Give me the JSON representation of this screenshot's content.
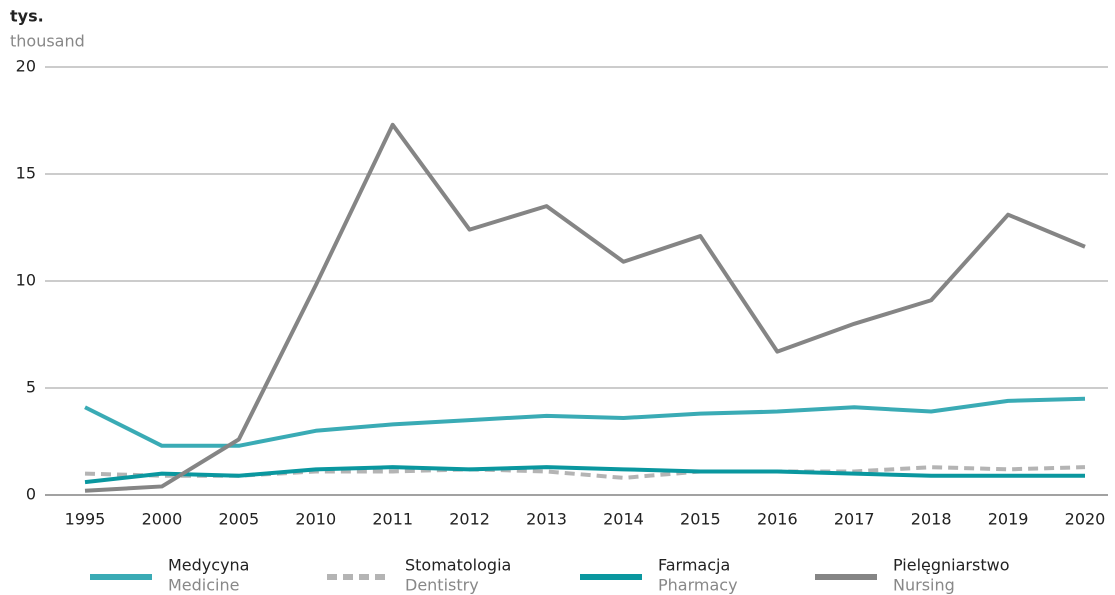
{
  "chart_data": {
    "type": "line",
    "y_label": "tys.",
    "y_label_en": "thousand",
    "categories": [
      "1995",
      "2000",
      "2005",
      "2010",
      "2011",
      "2012",
      "2013",
      "2014",
      "2015",
      "2016",
      "2017",
      "2018",
      "2019",
      "2020"
    ],
    "series": [
      {
        "name": "Medycyna",
        "name_en": "Medicine",
        "color": "#3aabb5",
        "dashed": false,
        "values": [
          4.1,
          2.3,
          2.3,
          3.0,
          3.3,
          3.5,
          3.7,
          3.6,
          3.8,
          3.9,
          4.1,
          3.9,
          4.4,
          4.5
        ]
      },
      {
        "name": "Stomatologia",
        "name_en": "Dentistry",
        "color": "#b4b4b4",
        "dashed": true,
        "values": [
          1.0,
          0.9,
          0.9,
          1.1,
          1.1,
          1.2,
          1.1,
          0.8,
          1.1,
          1.1,
          1.1,
          1.3,
          1.2,
          1.3
        ]
      },
      {
        "name": "Farmacja",
        "name_en": "Pharmacy",
        "color": "#0a979f",
        "dashed": false,
        "values": [
          0.6,
          1.0,
          0.9,
          1.2,
          1.3,
          1.2,
          1.3,
          1.2,
          1.1,
          1.1,
          1.0,
          0.9,
          0.9,
          0.9
        ]
      },
      {
        "name": "Pielęgniarstwo",
        "name_en": "Nursing",
        "color": "#858585",
        "dashed": false,
        "values": [
          0.2,
          0.4,
          2.6,
          9.8,
          17.3,
          12.4,
          13.5,
          10.9,
          12.1,
          6.7,
          8.0,
          9.1,
          13.1,
          11.6
        ]
      }
    ],
    "ylim": [
      0,
      20
    ],
    "yticks": [
      0,
      5,
      10,
      15,
      20
    ],
    "grid": true
  }
}
